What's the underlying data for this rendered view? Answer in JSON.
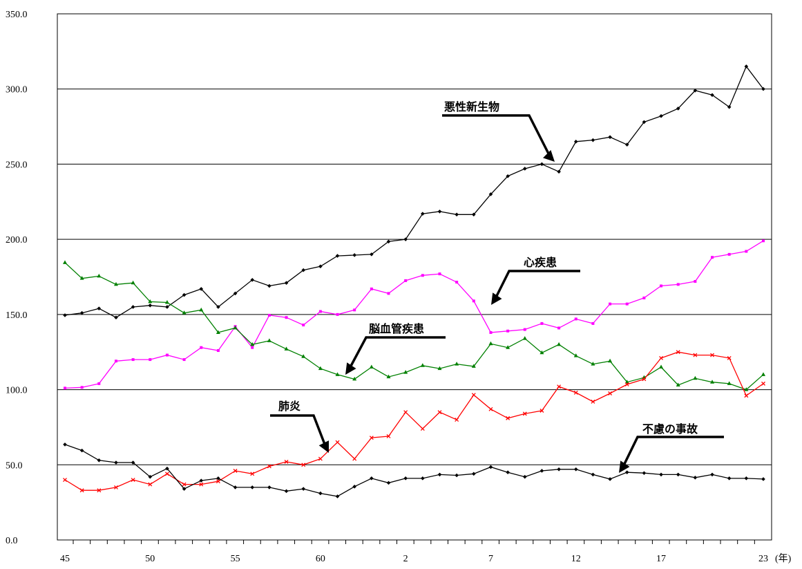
{
  "chart_data": {
    "type": "line",
    "x_tick_labels": [
      "45",
      "50",
      "55",
      "60",
      "2",
      "7",
      "12",
      "17",
      "23"
    ],
    "x_unit": "(年)",
    "ylim": [
      0,
      350
    ],
    "y_tick_labels": [
      "0.0",
      "50.0",
      "100.0",
      "150.0",
      "200.0",
      "250.0",
      "300.0",
      "350.0"
    ],
    "grid": true,
    "series": [
      {
        "name": "悪性新生物",
        "color": "#000000",
        "marker": "diamond",
        "values": [
          149.5,
          151,
          154,
          148,
          155,
          156,
          155,
          163,
          167,
          155,
          164,
          173,
          169,
          171,
          179.5,
          182,
          189,
          189.5,
          190,
          198.5,
          200,
          217,
          218.5,
          216.5,
          216.5,
          230,
          242,
          247,
          250,
          245,
          265,
          266,
          268,
          263,
          278,
          282,
          287,
          299,
          296,
          288,
          315,
          300
        ]
      },
      {
        "name": "心疾患",
        "color": "#ff00ff",
        "marker": "square",
        "values": [
          101,
          101.5,
          104,
          119,
          120,
          120,
          123,
          120,
          128,
          126,
          142,
          128,
          149.5,
          148,
          143,
          152,
          150,
          153,
          167,
          164,
          172.5,
          176,
          177,
          171.5,
          159,
          138,
          139,
          140,
          144,
          141,
          147,
          144,
          157,
          157,
          161,
          169,
          170,
          172,
          188,
          190,
          192,
          199
        ]
      },
      {
        "name": "脳血管疾患",
        "color": "#008000",
        "marker": "triangle",
        "values": [
          184.5,
          174,
          175.5,
          170,
          171,
          158.5,
          158,
          151,
          153,
          138,
          141,
          130,
          132.5,
          127,
          122,
          114,
          110,
          107,
          115,
          108.5,
          111.5,
          116,
          114,
          117,
          115.5,
          130.5,
          128,
          134,
          124.5,
          130,
          122.5,
          117,
          119,
          105,
          108,
          115,
          103,
          107.5,
          105,
          104,
          100,
          110
        ]
      },
      {
        "name": "肺炎",
        "color": "#ff0000",
        "marker": "cross",
        "values": [
          40,
          33,
          33,
          35,
          40,
          37,
          44,
          37,
          37,
          39,
          46,
          44,
          49,
          52,
          50,
          54,
          65,
          54,
          68,
          69,
          85,
          74,
          85,
          80,
          96.5,
          87,
          81,
          84,
          86,
          102,
          98,
          92,
          97.5,
          103.5,
          107,
          121,
          125,
          123,
          123,
          121,
          96,
          104
        ]
      },
      {
        "name": "不慮の事故",
        "color": "#000000",
        "marker": "diamond",
        "values": [
          63.5,
          59.5,
          53,
          51.5,
          51.5,
          42,
          47.5,
          34,
          39.5,
          41,
          35,
          35,
          35,
          32.5,
          34,
          31,
          29,
          35.5,
          41,
          38,
          41,
          41,
          43.5,
          43,
          44,
          48.5,
          45,
          42,
          46,
          47,
          47,
          43.5,
          40.5,
          45,
          44.5,
          43.5,
          43.5,
          41.5,
          43.5,
          41,
          41,
          40.5
        ]
      }
    ],
    "annotations": [
      {
        "text": "悪性新生物",
        "target_series": "悪性新生物"
      },
      {
        "text": "心疾患",
        "target_series": "心疾患"
      },
      {
        "text": "脳血管疾患",
        "target_series": "脳血管疾患"
      },
      {
        "text": "肺炎",
        "target_series": "肺炎"
      },
      {
        "text": "不慮の事故",
        "target_series": "不慮の事故"
      }
    ]
  }
}
